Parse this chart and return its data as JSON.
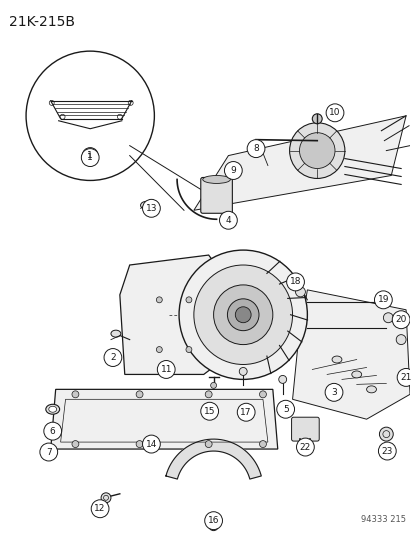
{
  "title": "21K-215B",
  "footer": "94333 215",
  "bg_color": "#ffffff",
  "fig_width": 4.14,
  "fig_height": 5.33,
  "dpi": 100,
  "title_fontsize": 10,
  "label_fontsize": 6.5,
  "line_color": "#1a1a1a",
  "fill_light": "#f0f0f0",
  "fill_mid": "#e0e0e0",
  "fill_dark": "#c8c8c8"
}
